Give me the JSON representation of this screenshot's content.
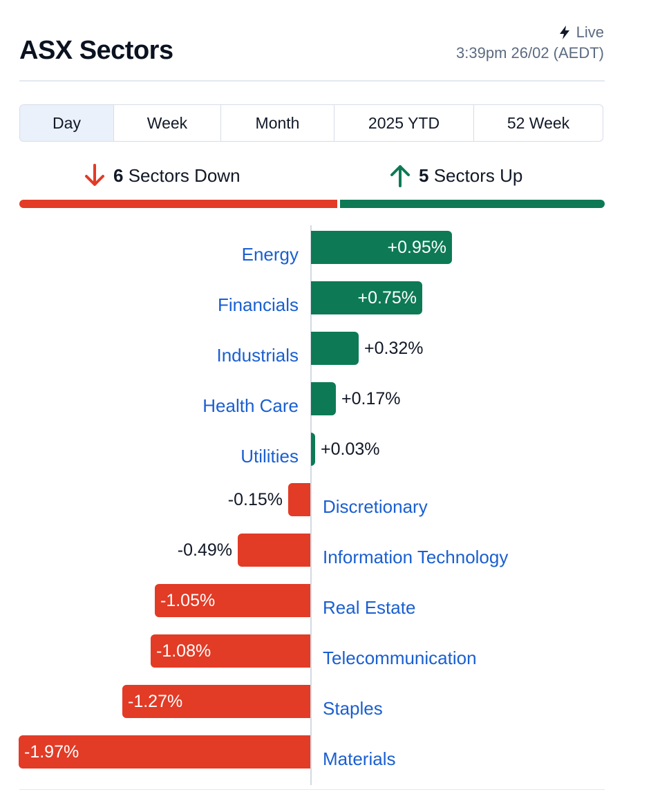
{
  "header": {
    "title": "ASX Sectors",
    "live_label": "Live",
    "timestamp": "3:39pm 26/02 (AEDT)"
  },
  "tabs": [
    {
      "label": "Day",
      "active": true
    },
    {
      "label": "Week",
      "active": false
    },
    {
      "label": "Month",
      "active": false
    },
    {
      "label": "2025 YTD",
      "active": false
    },
    {
      "label": "52 Week",
      "active": false
    }
  ],
  "summary": {
    "down_count": "6",
    "down_label": "Sectors Down",
    "up_count": "5",
    "up_label": "Sectors Up"
  },
  "colors": {
    "up": "#0d7a55",
    "down": "#e23b26",
    "link": "#1a5fd0"
  },
  "chart_data": {
    "type": "bar",
    "orientation": "horizontal",
    "unit": "%",
    "categories": [
      "Energy",
      "Financials",
      "Industrials",
      "Health Care",
      "Utilities",
      "Discretionary",
      "Information Technology",
      "Real Estate",
      "Telecommunication",
      "Staples",
      "Materials"
    ],
    "values": [
      0.95,
      0.75,
      0.32,
      0.17,
      0.03,
      -0.15,
      -0.49,
      -1.05,
      -1.08,
      -1.27,
      -1.97
    ],
    "value_labels": [
      "+0.95%",
      "+0.75%",
      "+0.32%",
      "+0.17%",
      "+0.03%",
      "-0.15%",
      "-0.49%",
      "-1.05%",
      "-1.08%",
      "-1.27%",
      "-1.97%"
    ],
    "xlim": [
      -1.97,
      1.97
    ]
  }
}
